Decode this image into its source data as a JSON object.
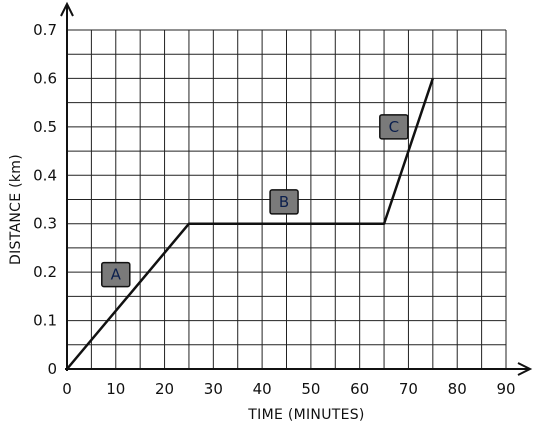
{
  "chart_data": {
    "type": "line",
    "xlabel": "TIME (MINUTES)",
    "ylabel": "DISTANCE (km)",
    "xlim": [
      0,
      90
    ],
    "ylim": [
      0,
      0.7
    ],
    "x_ticks": [
      0,
      10,
      20,
      30,
      40,
      50,
      60,
      70,
      80,
      90
    ],
    "y_ticks": [
      "0",
      "0.1",
      "0.2",
      "0.3",
      "0.4",
      "0.5",
      "0.6",
      "0.7"
    ],
    "y_tick_values": [
      0,
      0.1,
      0.2,
      0.3,
      0.4,
      0.5,
      0.6,
      0.7
    ],
    "grid": true,
    "grid_minor_x_step": 5,
    "grid_minor_y_step": 0.05,
    "series": [
      {
        "x": [
          0,
          25,
          65,
          75
        ],
        "y": [
          0,
          0.3,
          0.3,
          0.6
        ]
      }
    ],
    "annotations": [
      {
        "label": "A",
        "x": 10,
        "y": 0.195
      },
      {
        "label": "B",
        "x": 44.5,
        "y": 0.345
      },
      {
        "label": "C",
        "x": 67,
        "y": 0.5
      }
    ]
  },
  "colors": {
    "line": "#111111",
    "grid": "#222222",
    "annotation_box": "#7a7a7a",
    "annotation_border": "#111111"
  }
}
